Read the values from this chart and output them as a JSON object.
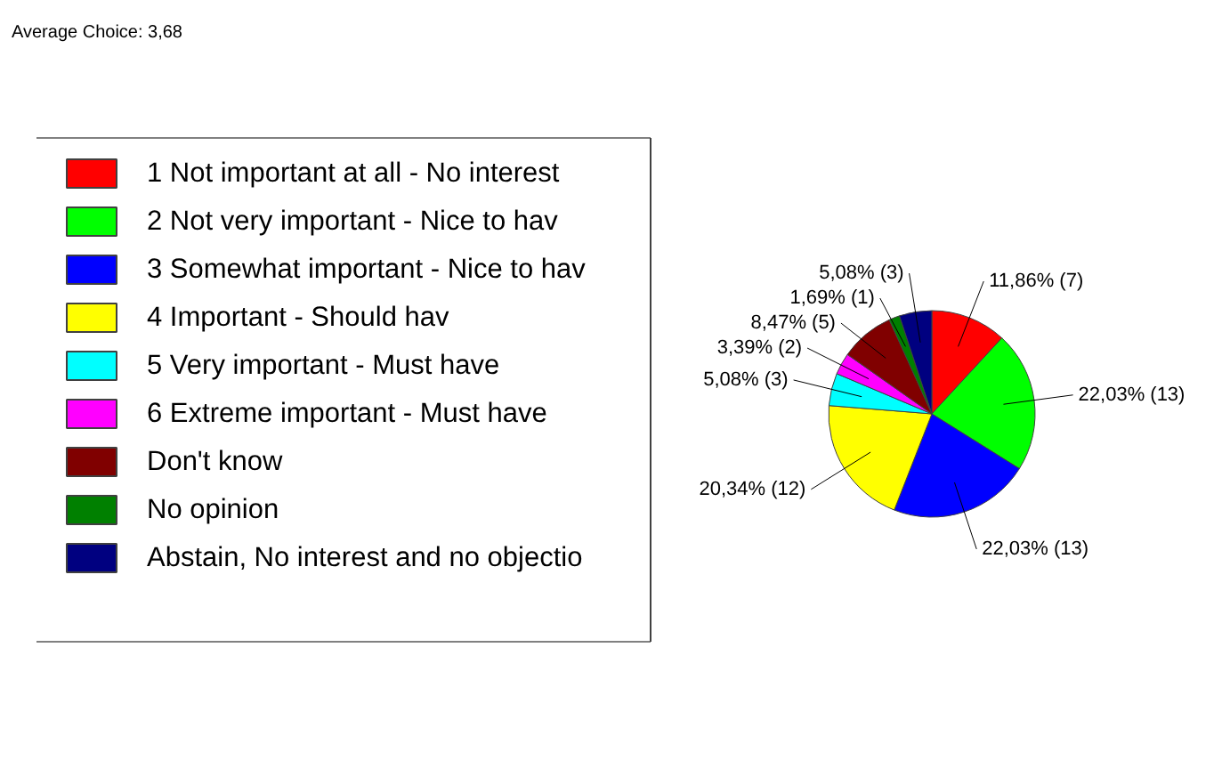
{
  "chart_data": {
    "type": "pie",
    "title": "Average Choice: 3,68",
    "legend": "left",
    "categories": [
      "1 Not important at all - No interest",
      "2 Not very important - Nice to hav",
      "3 Somewhat important - Nice to hav",
      "4 Important - Should hav",
      "5 Very important - Must have",
      "6 Extreme important - Must have",
      "Don't know",
      "No opinion",
      "Abstain, No interest and no objectio"
    ],
    "values": [
      11.86,
      22.03,
      22.03,
      20.34,
      5.08,
      3.39,
      8.47,
      1.69,
      5.08
    ],
    "colors": [
      "#ff0000",
      "#00ff00",
      "#0000ff",
      "#ffff00",
      "#00ffff",
      "#ff00ff",
      "#800000",
      "#008000",
      "#000080"
    ],
    "value_labels": [
      "11,86% (7)",
      "22,03% (13)",
      "22,03% (13)",
      "20,34% (12)",
      "5,08% (3)",
      "3,39% (2)",
      "8,47% (5)",
      "1,69% (1)",
      "5,08% (3)"
    ]
  }
}
